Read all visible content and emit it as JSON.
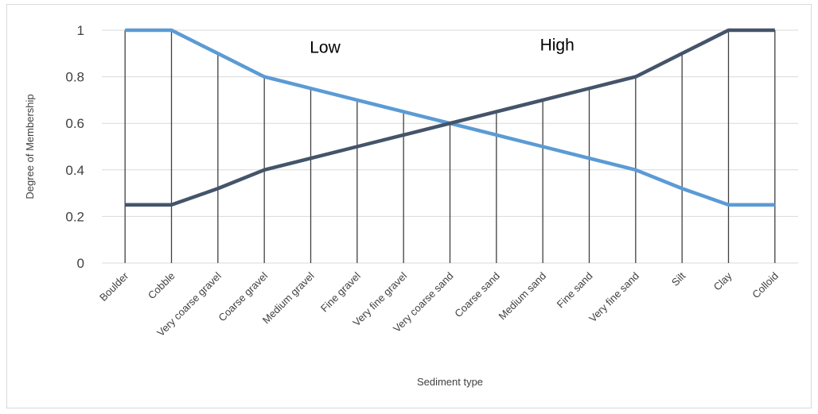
{
  "chart_data": {
    "type": "line",
    "categories": [
      "Boulder",
      "Cobble",
      "Very coarse gravel",
      "Coarse gravel",
      "Medium gravel",
      "Fine gravel",
      "Very fine gravel",
      "Very coarse sand",
      "Coarse sand",
      "Medium sand",
      "Fine sand",
      "Very fine sand",
      "Silt",
      "Clay",
      "Colloid"
    ],
    "series": [
      {
        "values": [
          1,
          1,
          0.9,
          0.8,
          0.75,
          0.7,
          0.65,
          0.6,
          0.55,
          0.5,
          0.45,
          0.4,
          0.32,
          0.25,
          0.25
        ],
        "color": "#5b9bd5"
      },
      {
        "values": [
          0.25,
          0.25,
          0.32,
          0.4,
          0.45,
          0.5,
          0.55,
          0.6,
          0.65,
          0.7,
          0.75,
          0.8,
          0.9,
          1,
          1
        ],
        "color": "#44546a"
      }
    ],
    "annotations": [
      {
        "text": "Low",
        "x": "Medium gravel",
        "y": 0.93
      },
      {
        "text": "High",
        "x": "Medium sand",
        "y": 0.94
      }
    ],
    "title": "",
    "xlabel": "Sediment type",
    "ylabel": "Degree of Membership",
    "ylim": [
      0,
      1
    ],
    "yticks": [
      0,
      0.2,
      0.4,
      0.6,
      0.8,
      1
    ],
    "ytick_labels": [
      "0",
      "0.2",
      "0.4",
      "0.6",
      "0.8",
      "1"
    ],
    "grid": true,
    "vertical_drop_lines": true,
    "drop_line_color": "#404040",
    "gridline_color": "#d9d9d9",
    "legend": "none"
  }
}
